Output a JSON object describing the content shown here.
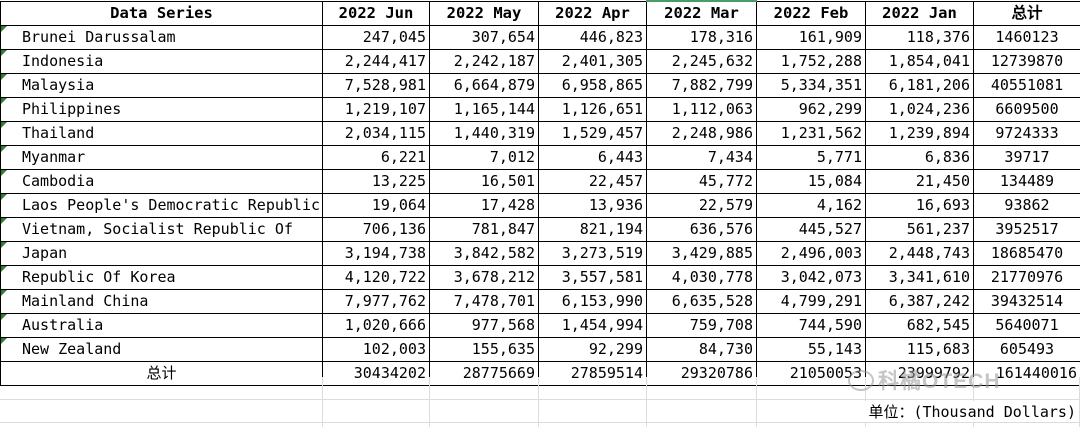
{
  "table": {
    "corner_label": "Data Series",
    "columns": [
      "2022 Jun",
      "2022 May",
      "2022 Apr",
      "2022 Mar",
      "2022 Feb",
      "2022 Jan",
      "总计"
    ],
    "rows": [
      {
        "name": "Brunei Darussalam",
        "values": [
          "247,045",
          "307,654",
          "446,823",
          "178,316",
          "161,909",
          "118,376"
        ],
        "total": "1460123"
      },
      {
        "name": "Indonesia",
        "values": [
          "2,244,417",
          "2,242,187",
          "2,401,305",
          "2,245,632",
          "1,752,288",
          "1,854,041"
        ],
        "total": "12739870"
      },
      {
        "name": "Malaysia",
        "values": [
          "7,528,981",
          "6,664,879",
          "6,958,865",
          "7,882,799",
          "5,334,351",
          "6,181,206"
        ],
        "total": "40551081"
      },
      {
        "name": "Philippines",
        "values": [
          "1,219,107",
          "1,165,144",
          "1,126,651",
          "1,112,063",
          "962,299",
          "1,024,236"
        ],
        "total": "6609500"
      },
      {
        "name": "Thailand",
        "values": [
          "2,034,115",
          "1,440,319",
          "1,529,457",
          "2,248,986",
          "1,231,562",
          "1,239,894"
        ],
        "total": "9724333"
      },
      {
        "name": "Myanmar",
        "values": [
          "6,221",
          "7,012",
          "6,443",
          "7,434",
          "5,771",
          "6,836"
        ],
        "total": "39717"
      },
      {
        "name": "Cambodia",
        "values": [
          "13,225",
          "16,501",
          "22,457",
          "45,772",
          "15,084",
          "21,450"
        ],
        "total": "134489"
      },
      {
        "name": "Laos People's Democratic Republic",
        "values": [
          "19,064",
          "17,428",
          "13,936",
          "22,579",
          "4,162",
          "16,693"
        ],
        "total": "93862"
      },
      {
        "name": "Vietnam, Socialist Republic Of",
        "values": [
          "706,136",
          "781,847",
          "821,194",
          "636,576",
          "445,527",
          "561,237"
        ],
        "total": "3952517"
      },
      {
        "name": "Japan",
        "values": [
          "3,194,738",
          "3,842,582",
          "3,273,519",
          "3,429,885",
          "2,496,003",
          "2,448,743"
        ],
        "total": "18685470"
      },
      {
        "name": "Republic Of Korea",
        "values": [
          "4,120,722",
          "3,678,212",
          "3,557,581",
          "4,030,778",
          "3,042,073",
          "3,341,610"
        ],
        "total": "21770976"
      },
      {
        "name": "Mainland China",
        "values": [
          "7,977,762",
          "7,478,701",
          "6,153,990",
          "6,635,528",
          "4,799,291",
          "6,387,242"
        ],
        "total": "39432514"
      },
      {
        "name": "Australia",
        "values": [
          "1,020,666",
          "977,568",
          "1,454,994",
          "759,708",
          "744,590",
          "682,545"
        ],
        "total": "5640071"
      },
      {
        "name": "New Zealand",
        "values": [
          "102,003",
          "155,635",
          "92,299",
          "84,730",
          "55,143",
          "115,683"
        ],
        "total": "605493"
      }
    ],
    "totals_row": {
      "label": "总计",
      "values": [
        "30434202",
        "28775669",
        "27859514",
        "29320786",
        "21050053",
        "23999792"
      ],
      "grand_total": "161440016"
    }
  },
  "unit_note": "单位：(Thousand Dollars)",
  "watermark": "科橘OTECH",
  "colors": {
    "cell_marker": "#2e7d32",
    "selected_column_accent": "#4a9a6a",
    "gridline": "#dcdcdc"
  }
}
